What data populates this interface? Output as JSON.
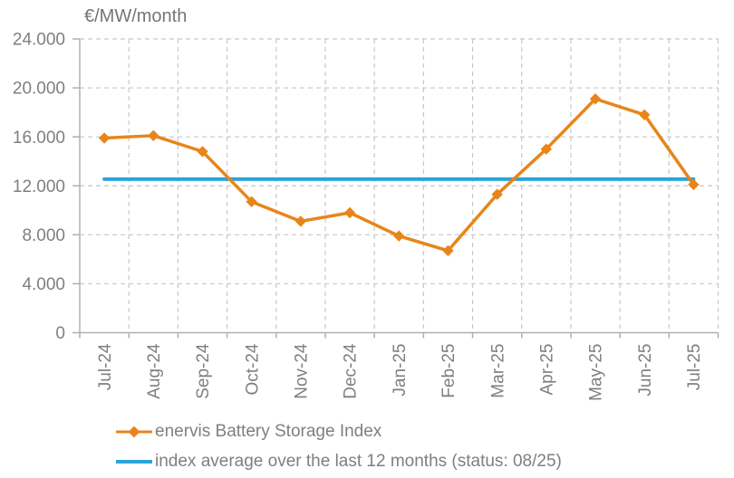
{
  "chart_data": {
    "type": "line",
    "title": "€/MW/month",
    "categories": [
      "Jul-24",
      "Aug-24",
      "Sep-24",
      "Oct-24",
      "Nov-24",
      "Dec-24",
      "Jan-25",
      "Feb-25",
      "Mar-25",
      "Apr-25",
      "May-25",
      "Jun-25",
      "Jul-25"
    ],
    "series": [
      {
        "name": "enervis Battery Storage Index",
        "color": "#E8851A",
        "marker": "diamond",
        "values": [
          15900,
          16100,
          14800,
          10700,
          9100,
          9800,
          7900,
          6700,
          11300,
          15000,
          19100,
          17800,
          12100
        ]
      },
      {
        "name": "index average over the last 12 months (status: 08/25)",
        "color": "#2BA4DA",
        "marker": "none",
        "values": [
          12550,
          12550,
          12550,
          12550,
          12550,
          12550,
          12550,
          12550,
          12550,
          12550,
          12550,
          12550,
          12550
        ]
      }
    ],
    "ylabel": "€/MW/month",
    "xlabel": "",
    "ylim": [
      0,
      24000
    ],
    "ytick_values": [
      0,
      4000,
      8000,
      12000,
      16000,
      20000,
      24000
    ],
    "ytick_labels": [
      "0",
      "4.000",
      "8.000",
      "12.000",
      "16.000",
      "20.000",
      "24.000"
    ],
    "grid": true,
    "grid_style": "dashed",
    "legend_position": "bottom-left"
  },
  "styles": {
    "text_color": "#7F7F7F",
    "grid_color": "#C8C8C8",
    "axis_color": "#B0B0B0",
    "background": "#FFFFFF",
    "index_color": "#E8851A",
    "average_color": "#2BA4DA"
  }
}
